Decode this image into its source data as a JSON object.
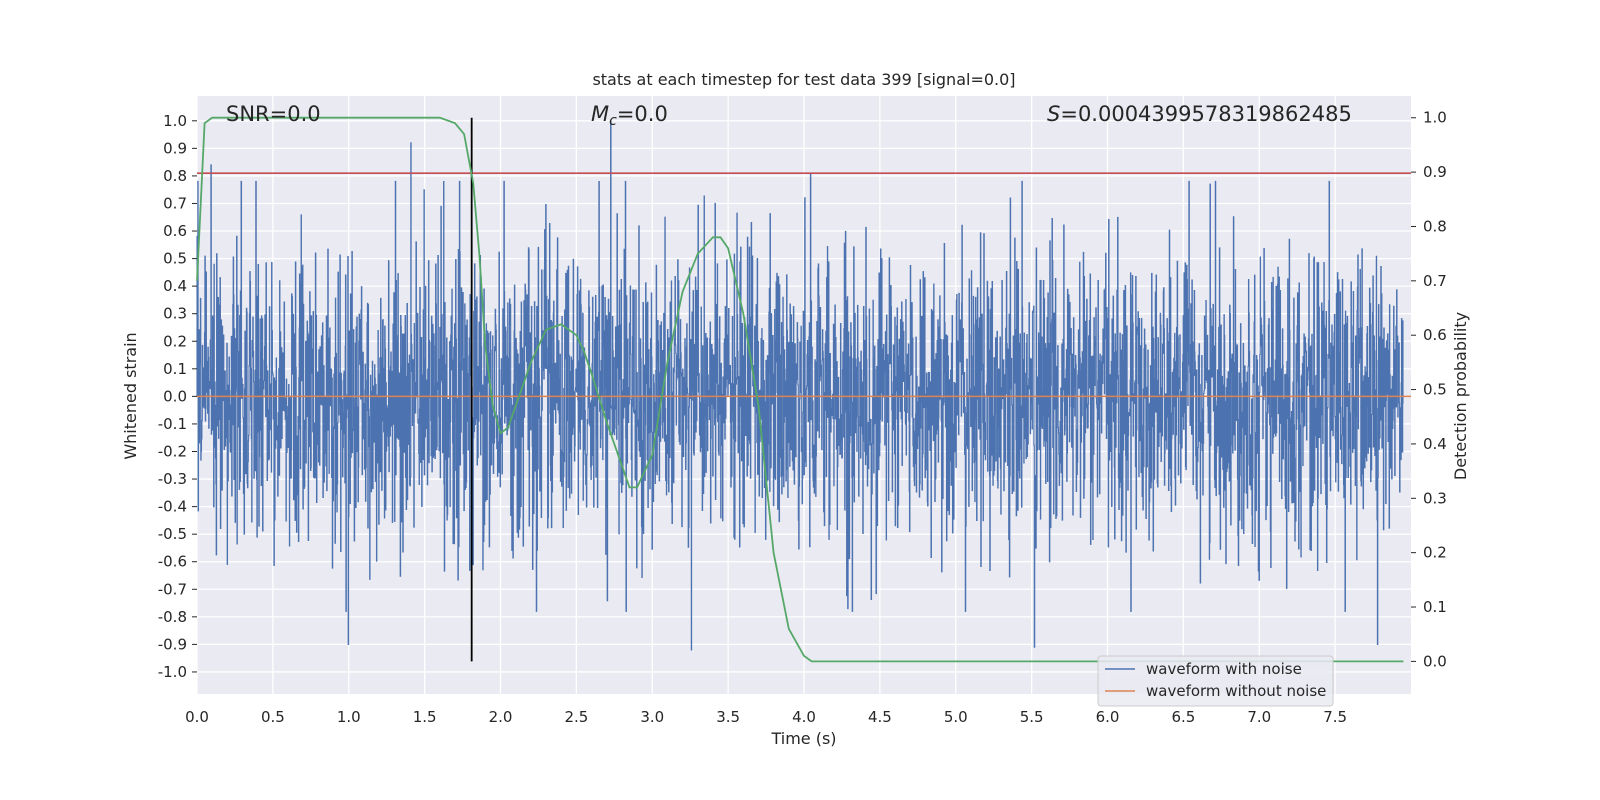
{
  "chart_data": {
    "type": "line",
    "title": "stats at each timestep for test data 399 [signal=0.0]",
    "xlabel": "Time (s)",
    "ylabel": "Whitened strain",
    "ylabel_right": "Detection probability",
    "xlim": [
      0.0,
      8.0
    ],
    "ylim": [
      -1.08,
      1.09
    ],
    "ylim_right": [
      -0.06,
      1.04
    ],
    "xticks": [
      "0.0",
      "0.5",
      "1.0",
      "1.5",
      "2.0",
      "2.5",
      "3.0",
      "3.5",
      "4.0",
      "4.5",
      "5.0",
      "5.5",
      "6.0",
      "6.5",
      "7.0",
      "7.5"
    ],
    "yticks": [
      "1.0",
      "0.9",
      "0.8",
      "0.7",
      "0.6",
      "0.5",
      "0.4",
      "0.3",
      "0.2",
      "0.1",
      "0.0",
      "-0.1",
      "-0.2",
      "-0.3",
      "-0.4",
      "-0.5",
      "-0.6",
      "-0.7",
      "-0.8",
      "-0.9",
      "-1.0"
    ],
    "yticks_right": [
      "1.0",
      "0.9",
      "0.8",
      "0.7",
      "0.6",
      "0.5",
      "0.4",
      "0.3",
      "0.2",
      "0.1",
      "0.0"
    ],
    "annotations": {
      "snr": "SNR=0.0",
      "mc_symbol": "M",
      "mc_sub": "c",
      "mc_value": "=0.0",
      "s_symbol": "S",
      "s_value": "=0.0004399578319862485"
    },
    "threshold": {
      "value": 0.81,
      "color": "#c44e52"
    },
    "marker_time": 1.81,
    "series": [
      {
        "name": "waveform with noise",
        "color": "#4c72b0",
        "kind": "noise",
        "seed": 399,
        "envelope": 0.62,
        "peaks_max": [
          0.84,
          0.92,
          1.0,
          0.81,
          0.72,
          0.77
        ],
        "peaks_min": [
          -0.9,
          -0.92,
          -0.91
        ]
      },
      {
        "name": "waveform without noise",
        "color": "#dd8452",
        "kind": "constant",
        "value": 0.0
      },
      {
        "name": "detection probability",
        "color": "#55a868",
        "axis": "right",
        "x": [
          0.0,
          0.05,
          0.1,
          0.15,
          0.2,
          0.3,
          0.5,
          0.8,
          1.0,
          1.2,
          1.4,
          1.6,
          1.7,
          1.76,
          1.82,
          1.86,
          1.9,
          1.95,
          2.0,
          2.05,
          2.1,
          2.2,
          2.3,
          2.4,
          2.5,
          2.55,
          2.6,
          2.7,
          2.8,
          2.85,
          2.9,
          3.0,
          3.1,
          3.2,
          3.3,
          3.4,
          3.45,
          3.5,
          3.6,
          3.7,
          3.8,
          3.9,
          4.0,
          4.05,
          4.2,
          5.0,
          6.0,
          7.0,
          7.95
        ],
        "y": [
          0.7,
          0.99,
          1.0,
          1.0,
          1.0,
          1.0,
          1.0,
          1.0,
          1.0,
          1.0,
          1.0,
          1.0,
          0.99,
          0.97,
          0.88,
          0.75,
          0.58,
          0.47,
          0.42,
          0.43,
          0.47,
          0.55,
          0.61,
          0.62,
          0.6,
          0.57,
          0.53,
          0.44,
          0.36,
          0.32,
          0.32,
          0.38,
          0.55,
          0.68,
          0.75,
          0.78,
          0.78,
          0.76,
          0.64,
          0.47,
          0.2,
          0.06,
          0.01,
          0.0,
          0.0,
          0.0,
          0.0,
          0.0,
          0.0
        ]
      }
    ],
    "legend": {
      "position": "lower-right",
      "entries": [
        {
          "label": "waveform with noise",
          "color": "#4c72b0"
        },
        {
          "label": "waveform without noise",
          "color": "#dd8452"
        }
      ]
    },
    "grid": true
  }
}
